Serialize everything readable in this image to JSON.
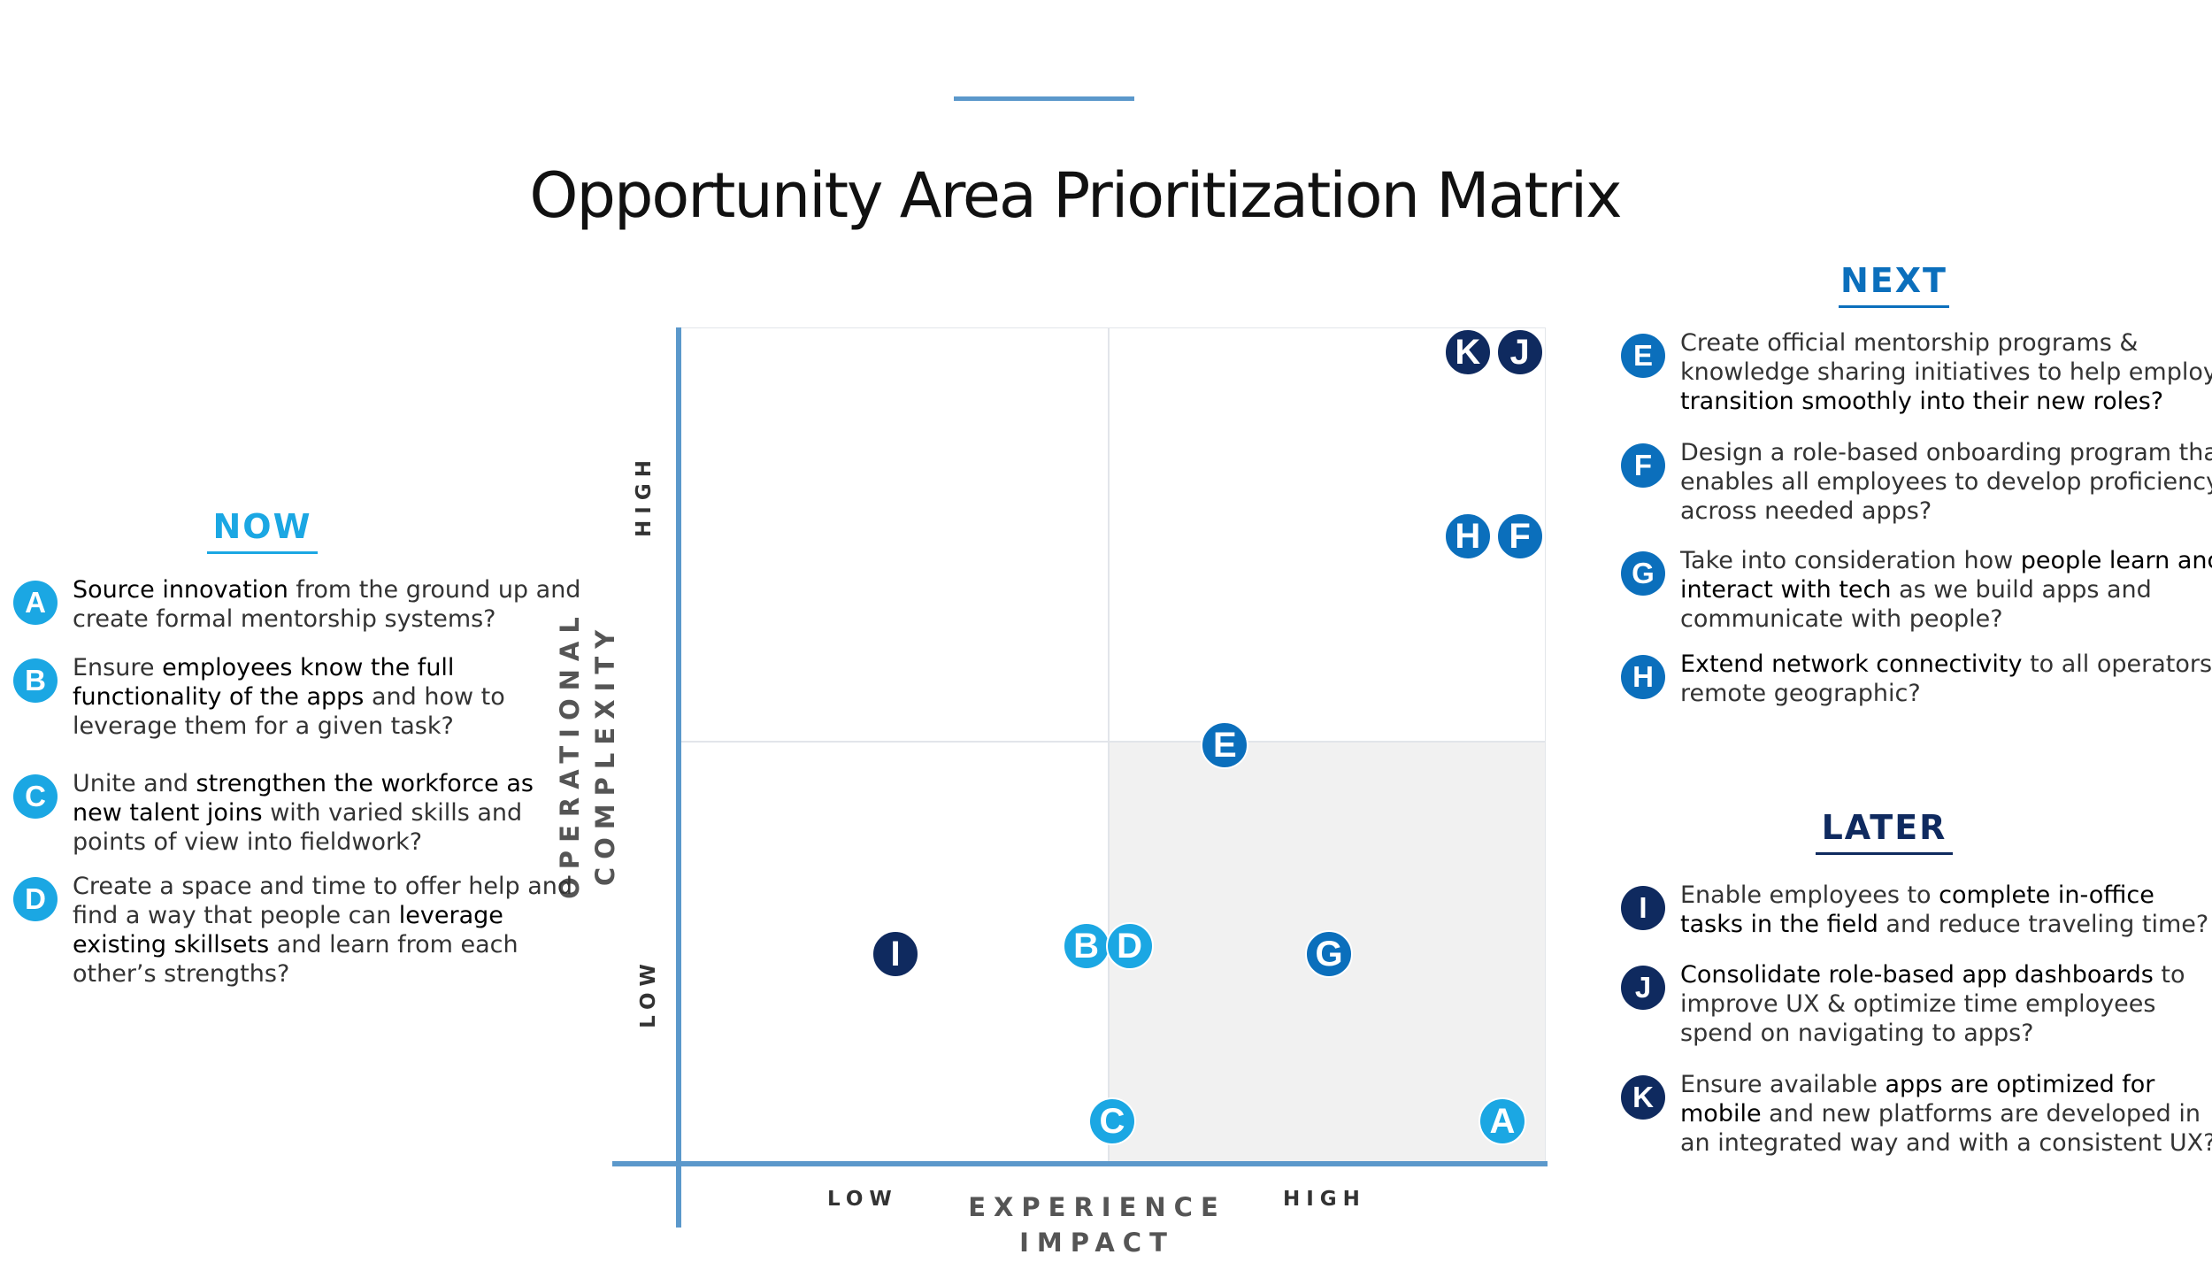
{
  "title": "Opportunity Area Prioritization Matrix",
  "colors": {
    "accent_line": "#5b98cb",
    "now": "#1ba7e3",
    "next": "#0b6fbc",
    "later": "#0f2a5f",
    "quadrant_fill": "#f1f1f1"
  },
  "matrix": {
    "y_axis_title_1": "OPERATIONAL",
    "y_axis_title_2": "COMPLEXITY",
    "y_low": "LOW",
    "y_high": "HIGH",
    "x_axis_title_1": "EXPERIENCE",
    "x_axis_title_2": "IMPACT",
    "x_low": "LOW",
    "x_high": "HIGH"
  },
  "groups": {
    "now": {
      "heading": "NOW",
      "items": [
        {
          "letter": "A",
          "lines": [
            [
              [
                "Source innovation",
                true
              ],
              [
                " from the ground up and",
                false
              ]
            ],
            [
              [
                "create formal mentorship systems?",
                false
              ]
            ]
          ]
        },
        {
          "letter": "B",
          "lines": [
            [
              [
                "Ensure ",
                false
              ],
              [
                "employees know the full",
                true
              ]
            ],
            [
              [
                "functionality of the apps",
                true
              ],
              [
                " and how to",
                false
              ]
            ],
            [
              [
                "leverage them for a given task?",
                false
              ]
            ]
          ]
        },
        {
          "letter": "C",
          "lines": [
            [
              [
                "Unite and ",
                false
              ],
              [
                "strengthen the workforce as",
                true
              ]
            ],
            [
              [
                "new talent joins",
                true
              ],
              [
                " with varied skills and",
                false
              ]
            ],
            [
              [
                "points of view into fieldwork?",
                false
              ]
            ]
          ]
        },
        {
          "letter": "D",
          "lines": [
            [
              [
                "Create a space and time to offer help and",
                false
              ]
            ],
            [
              [
                "find a way that people can ",
                false
              ],
              [
                "leverage",
                true
              ]
            ],
            [
              [
                "existing skillsets",
                true
              ],
              [
                " and learn from each",
                false
              ]
            ],
            [
              [
                "other’s strengths?",
                false
              ]
            ]
          ]
        }
      ]
    },
    "next": {
      "heading": "NEXT",
      "items": [
        {
          "letter": "E",
          "lines": [
            [
              [
                "Create official mentorship programs &",
                false
              ]
            ],
            [
              [
                "knowledge sharing initiatives to help employees",
                false
              ]
            ],
            [
              [
                "transition smoothly into their new roles?",
                true
              ]
            ]
          ]
        },
        {
          "letter": "F",
          "lines": [
            [
              [
                "Design a role-based onboarding program that",
                false
              ]
            ],
            [
              [
                "enables all employees to develop proficiency",
                false
              ]
            ],
            [
              [
                "across needed apps?",
                false
              ]
            ]
          ]
        },
        {
          "letter": "G",
          "lines": [
            [
              [
                "Take into consideration how ",
                false
              ],
              [
                "people learn and",
                true
              ]
            ],
            [
              [
                "interact with tech",
                true
              ],
              [
                " as we build apps and",
                false
              ]
            ],
            [
              [
                "communicate with people?",
                false
              ]
            ]
          ]
        },
        {
          "letter": "H",
          "lines": [
            [
              [
                "Extend network connectivity",
                true
              ],
              [
                " to all operators in",
                false
              ]
            ],
            [
              [
                "remote geographic?",
                false
              ]
            ]
          ]
        }
      ]
    },
    "later": {
      "heading": "LATER",
      "items": [
        {
          "letter": "I",
          "lines": [
            [
              [
                "Enable employees to ",
                false
              ],
              [
                "complete in-office",
                true
              ]
            ],
            [
              [
                "tasks in the field",
                true
              ],
              [
                " and reduce traveling time?",
                false
              ]
            ]
          ]
        },
        {
          "letter": "J",
          "lines": [
            [
              [
                "Consolidate role-based app dashboards",
                true
              ],
              [
                " to",
                false
              ]
            ],
            [
              [
                "improve UX & optimize time employees",
                false
              ]
            ],
            [
              [
                "spend on navigating to apps?",
                false
              ]
            ]
          ]
        },
        {
          "letter": "K",
          "lines": [
            [
              [
                "Ensure available ",
                false
              ],
              [
                "apps are optimized for",
                true
              ]
            ],
            [
              [
                "mobile",
                true
              ],
              [
                " and new platforms are developed in",
                false
              ]
            ],
            [
              [
                "an integrated way and with a consistent UX?",
                false
              ]
            ]
          ]
        }
      ]
    }
  },
  "markers": [
    {
      "letter": "K",
      "group": "later",
      "impact": 0.91,
      "complexity": 0.97
    },
    {
      "letter": "J",
      "group": "later",
      "impact": 0.97,
      "complexity": 0.97
    },
    {
      "letter": "H",
      "group": "next",
      "impact": 0.91,
      "complexity": 0.75
    },
    {
      "letter": "F",
      "group": "next",
      "impact": 0.97,
      "complexity": 0.75
    },
    {
      "letter": "E",
      "group": "next",
      "impact": 0.63,
      "complexity": 0.5
    },
    {
      "letter": "I",
      "group": "later",
      "impact": 0.25,
      "complexity": 0.25
    },
    {
      "letter": "B",
      "group": "now",
      "impact": 0.47,
      "complexity": 0.26
    },
    {
      "letter": "D",
      "group": "now",
      "impact": 0.52,
      "complexity": 0.26
    },
    {
      "letter": "G",
      "group": "next",
      "impact": 0.75,
      "complexity": 0.25
    },
    {
      "letter": "C",
      "group": "now",
      "impact": 0.5,
      "complexity": 0.05
    },
    {
      "letter": "A",
      "group": "now",
      "impact": 0.95,
      "complexity": 0.05
    }
  ]
}
